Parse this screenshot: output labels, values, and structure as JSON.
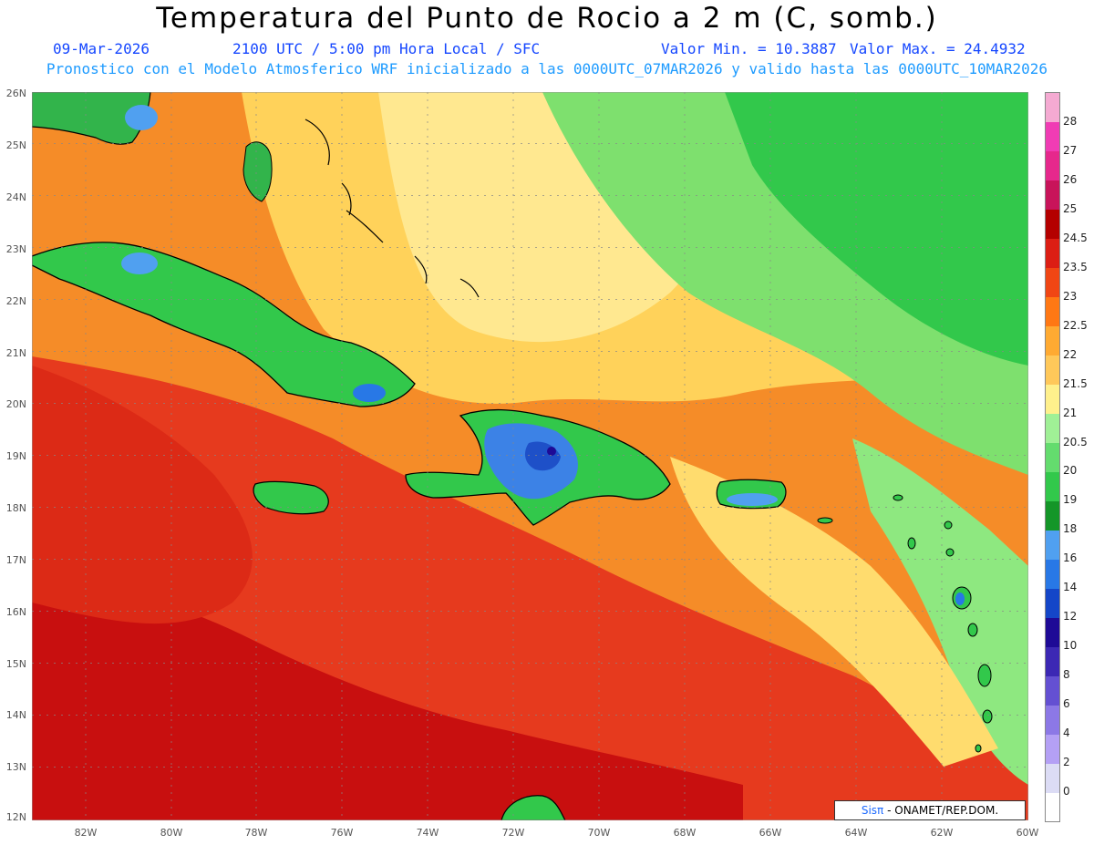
{
  "title": "Temperatura del Punto de Rocio a 2 m (C, somb.)",
  "date": "09-Mar-2026",
  "time": "2100 UTC / 5:00 pm Hora Local / SFC",
  "min_label": "Valor Min. = 10.3887",
  "max_label": "Valor Max. = 24.4932",
  "model_line": "Pronostico con el Modelo Atmosferico WRF inicializado a las 0000UTC_07MAR2026 y valido hasta las  0000UTC_10MAR2026",
  "credit": {
    "brand_a": "Sis",
    "brand_b": "π",
    "rest": "- ONAMET/REP.DOM."
  },
  "latitude_labels": [
    "26N",
    "25N",
    "24N",
    "23N",
    "22N",
    "21N",
    "20N",
    "19N",
    "18N",
    "17N",
    "16N",
    "15N",
    "14N",
    "13N",
    "12N"
  ],
  "longitude_labels": [
    "82W",
    "80W",
    "78W",
    "76W",
    "74W",
    "72W",
    "70W",
    "68W",
    "66W",
    "64W",
    "62W",
    "60W"
  ],
  "colorbar": {
    "levels": [
      "0",
      "2",
      "4",
      "6",
      "8",
      "10",
      "12",
      "14",
      "16",
      "18",
      "19",
      "20",
      "20.5",
      "21",
      "21.5",
      "22",
      "22.5",
      "23",
      "23.5",
      "24.5",
      "25",
      "26",
      "27",
      "28"
    ],
    "colors": [
      "#ffffff",
      "#dcdcf5",
      "#b4a0f5",
      "#8c78e6",
      "#6450d2",
      "#3c28b4",
      "#1e0a96",
      "#1446c8",
      "#2878e6",
      "#50a0f0",
      "#149628",
      "#32c84b",
      "#64dc6e",
      "#a0f096",
      "#fff08c",
      "#ffc85a",
      "#ffaa32",
      "#ff7814",
      "#f04614",
      "#dc1e14",
      "#b40000",
      "#c8145a",
      "#e6288c",
      "#f03cb4",
      "#f5aad2"
    ]
  },
  "map_style": {
    "ocean_base": "#f07820",
    "coastline": "#000000",
    "grid": "#888888"
  }
}
